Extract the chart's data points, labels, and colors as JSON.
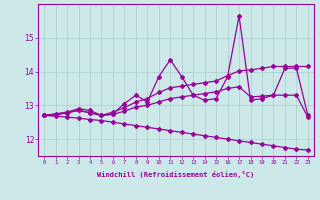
{
  "xlabel": "Windchill (Refroidissement éolien,°C)",
  "x_values": [
    0,
    1,
    2,
    3,
    4,
    5,
    6,
    7,
    8,
    9,
    10,
    11,
    12,
    13,
    14,
    15,
    16,
    17,
    18,
    19,
    20,
    21,
    22,
    23
  ],
  "line1": [
    12.7,
    12.75,
    12.8,
    12.9,
    12.85,
    12.7,
    12.75,
    13.05,
    13.3,
    13.1,
    13.85,
    14.35,
    13.85,
    13.3,
    13.15,
    13.2,
    13.85,
    15.65,
    13.15,
    13.2,
    13.3,
    14.1,
    14.1,
    12.7
  ],
  "line2": [
    12.7,
    12.72,
    12.78,
    12.85,
    12.78,
    12.7,
    12.8,
    12.93,
    13.1,
    13.2,
    13.38,
    13.52,
    13.57,
    13.62,
    13.67,
    13.72,
    13.88,
    14.02,
    14.05,
    14.1,
    14.15,
    14.15,
    14.15,
    14.15
  ],
  "line3": [
    12.7,
    12.72,
    12.78,
    12.85,
    12.78,
    12.7,
    12.73,
    12.83,
    12.95,
    13.0,
    13.1,
    13.2,
    13.25,
    13.3,
    13.35,
    13.4,
    13.5,
    13.55,
    13.25,
    13.27,
    13.3,
    13.3,
    13.3,
    12.65
  ],
  "line4": [
    12.7,
    12.68,
    12.65,
    12.62,
    12.58,
    12.55,
    12.5,
    12.45,
    12.4,
    12.35,
    12.3,
    12.25,
    12.2,
    12.15,
    12.1,
    12.05,
    12.0,
    11.95,
    11.9,
    11.85,
    11.8,
    11.75,
    11.7,
    11.68
  ],
  "line_color": "#990099",
  "bg_color": "#cce8e8",
  "grid_color": "#aacccc",
  "ylim": [
    11.5,
    16.0
  ],
  "xlim": [
    -0.5,
    23.5
  ],
  "yticks": [
    12,
    13,
    14,
    15
  ],
  "xticks": [
    0,
    1,
    2,
    3,
    4,
    5,
    6,
    7,
    8,
    9,
    10,
    11,
    12,
    13,
    14,
    15,
    16,
    17,
    18,
    19,
    20,
    21,
    22,
    23
  ]
}
